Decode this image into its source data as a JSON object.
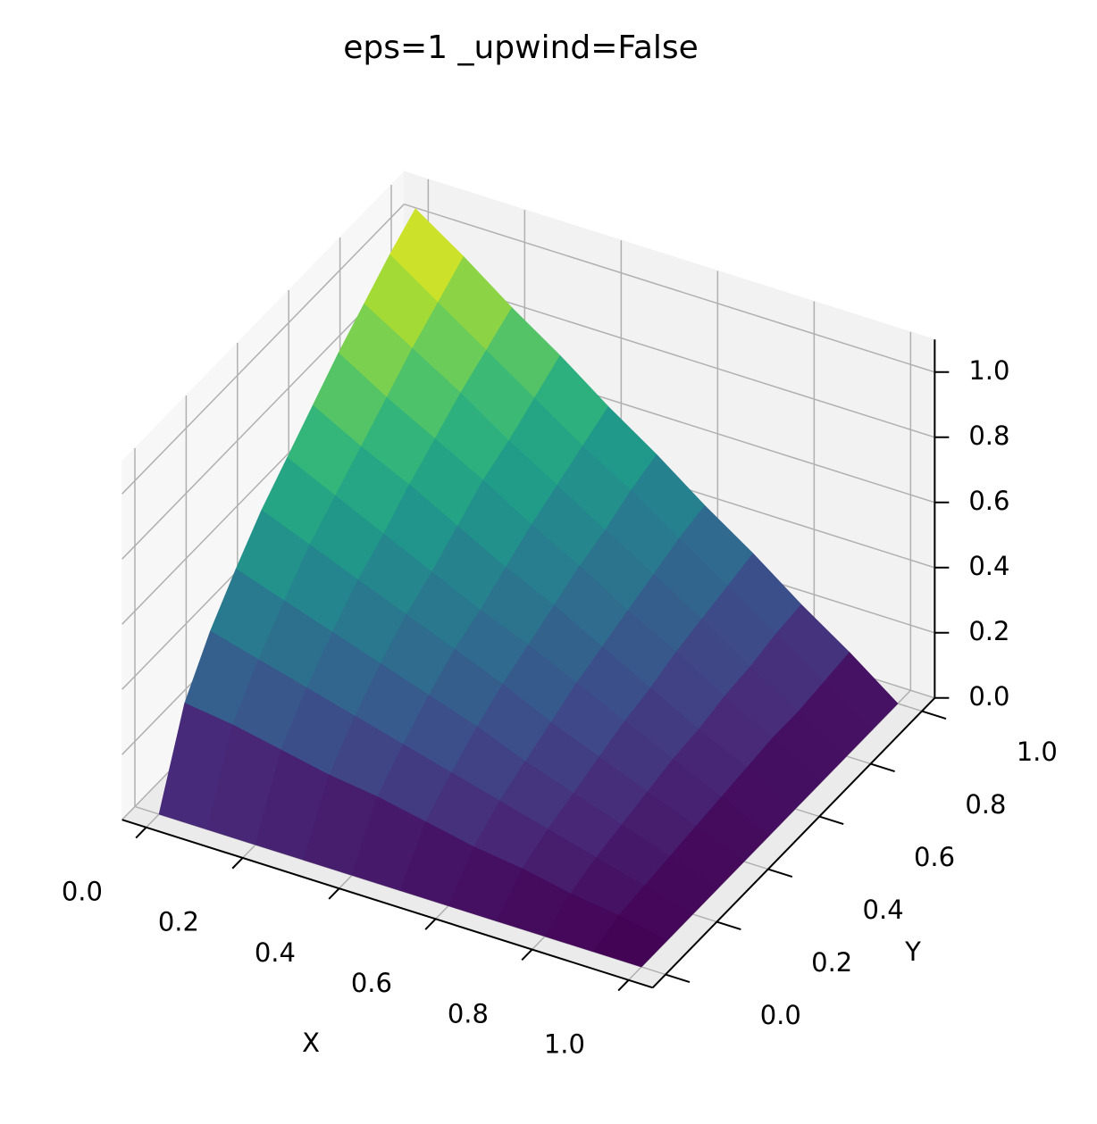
{
  "chart_data": {
    "type": "surface",
    "title": "eps=1 _upwind=False",
    "xlabel": "X",
    "ylabel": "Y",
    "colormap": "viridis",
    "x": [
      0,
      0.1,
      0.2,
      0.3,
      0.4,
      0.5,
      0.6,
      0.7,
      0.8,
      0.9,
      1
    ],
    "y": [
      0,
      0.1,
      0.2,
      0.3,
      0.4,
      0.5,
      0.6,
      0.7,
      0.8,
      0.9,
      1
    ],
    "z": [
      [
        0,
        0.26,
        0.4,
        0.51,
        0.61,
        0.69,
        0.77,
        0.85,
        0.92,
        0.99,
        1.05
      ],
      [
        0,
        0.24,
        0.36,
        0.46,
        0.55,
        0.62,
        0.69,
        0.76,
        0.83,
        0.89,
        0.95
      ],
      [
        0,
        0.21,
        0.32,
        0.41,
        0.49,
        0.55,
        0.62,
        0.68,
        0.74,
        0.79,
        0.84
      ],
      [
        0,
        0.18,
        0.28,
        0.36,
        0.43,
        0.48,
        0.54,
        0.6,
        0.64,
        0.69,
        0.74
      ],
      [
        0,
        0.16,
        0.24,
        0.31,
        0.37,
        0.41,
        0.46,
        0.51,
        0.55,
        0.59,
        0.63
      ],
      [
        0,
        0.13,
        0.2,
        0.26,
        0.31,
        0.35,
        0.39,
        0.43,
        0.46,
        0.5,
        0.53
      ],
      [
        0,
        0.1,
        0.16,
        0.2,
        0.24,
        0.28,
        0.31,
        0.34,
        0.37,
        0.4,
        0.42
      ],
      [
        0,
        0.08,
        0.12,
        0.15,
        0.18,
        0.21,
        0.23,
        0.26,
        0.28,
        0.3,
        0.32
      ],
      [
        0,
        0.05,
        0.08,
        0.1,
        0.12,
        0.14,
        0.15,
        0.17,
        0.18,
        0.2,
        0.21
      ],
      [
        0,
        0.03,
        0.04,
        0.05,
        0.06,
        0.07,
        0.08,
        0.09,
        0.09,
        0.1,
        0.11
      ],
      [
        0,
        0,
        0,
        0,
        0,
        0,
        0,
        0,
        0,
        0,
        0
      ]
    ],
    "xlim": [
      -0.05,
      1.05
    ],
    "ylim": [
      -0.05,
      1.05
    ],
    "zlim": [
      0,
      1.1
    ],
    "xticks": [
      {
        "value": 0,
        "label": "0.0"
      },
      {
        "value": 0.2,
        "label": "0.2"
      },
      {
        "value": 0.4,
        "label": "0.4"
      },
      {
        "value": 0.6,
        "label": "0.6"
      },
      {
        "value": 0.8,
        "label": "0.8"
      },
      {
        "value": 1,
        "label": "1.0"
      }
    ],
    "yticks": [
      {
        "value": 0,
        "label": "0.0"
      },
      {
        "value": 0.2,
        "label": "0.2"
      },
      {
        "value": 0.4,
        "label": "0.4"
      },
      {
        "value": 0.6,
        "label": "0.6"
      },
      {
        "value": 0.8,
        "label": "0.8"
      },
      {
        "value": 1,
        "label": "1.0"
      }
    ],
    "zticks": [
      {
        "value": 0,
        "label": "0.0"
      },
      {
        "value": 0.2,
        "label": "0.2"
      },
      {
        "value": 0.4,
        "label": "0.4"
      },
      {
        "value": 0.6,
        "label": "0.6"
      },
      {
        "value": 0.8,
        "label": "0.8"
      },
      {
        "value": 1,
        "label": "1.0"
      }
    ],
    "grid": true
  }
}
